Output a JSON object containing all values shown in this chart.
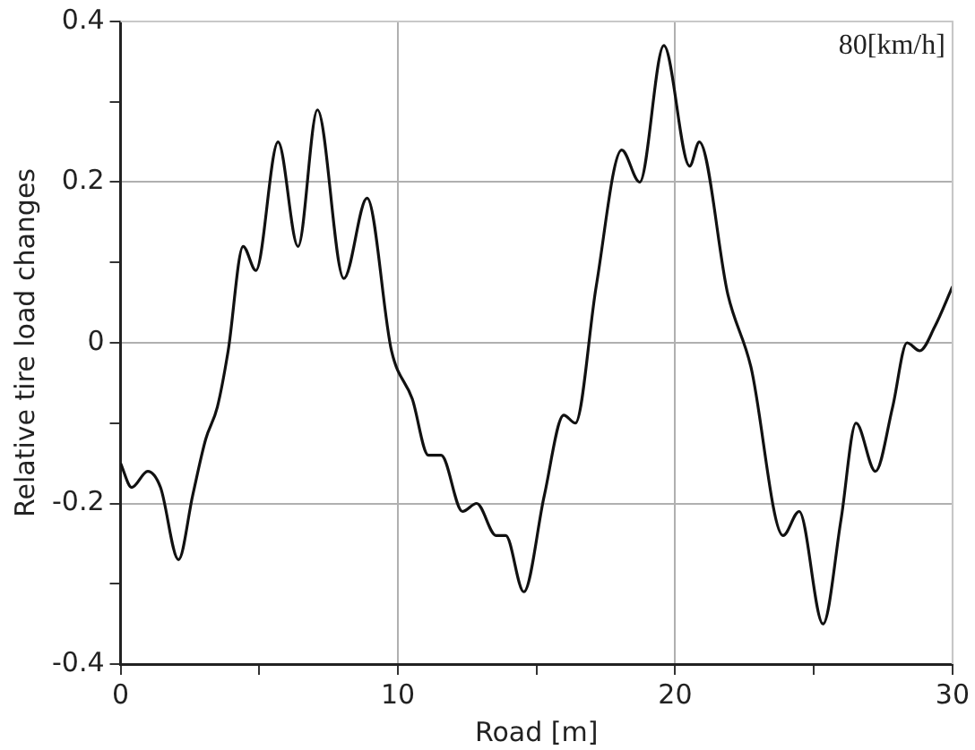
{
  "chart_data": {
    "type": "line",
    "xlabel": "Road [m]",
    "ylabel": "Relative tire load changes",
    "annotations": [
      "80[km/h]"
    ],
    "xlim": [
      0,
      30
    ],
    "xticks": [
      0,
      {
        "value": 5,
        "label": null
      },
      10,
      {
        "value": 15,
        "label": null
      },
      20,
      {
        "value": 25,
        "label": null
      },
      30
    ],
    "ylim": [
      -0.4,
      0.4
    ],
    "yticks": [
      -0.4,
      {
        "value": -0.3,
        "label": null
      },
      -0.2,
      {
        "value": -0.1,
        "label": null
      },
      0,
      {
        "value": 0.1,
        "label": null
      },
      0.2,
      {
        "value": 0.3,
        "label": null
      },
      0.4
    ],
    "grid": true,
    "marker": "none",
    "line_style": "solid",
    "series": [
      {
        "color": "#111111",
        "x": [
          0,
          0.4,
          0.98,
          1.44,
          2.09,
          2.6,
          3.07,
          3.49,
          3.88,
          4.42,
          4.88,
          5.68,
          6.4,
          7.1,
          8.05,
          8.89,
          9.77,
          10.52,
          11.1,
          11.56,
          12.33,
          12.84,
          13.54,
          13.89,
          14.54,
          15.28,
          15.98,
          16.4,
          17.15,
          18.07,
          18.72,
          19.59,
          20.52,
          20.87,
          21.9,
          22.73,
          23.89,
          24.47,
          25.33,
          25.98,
          26.52,
          27.22,
          27.84,
          28.36,
          28.82,
          29.36,
          30
        ],
        "values": [
          -0.15,
          -0.18,
          -0.16,
          -0.18,
          -0.27,
          -0.19,
          -0.12,
          -0.08,
          -0.01,
          0.12,
          0.09,
          0.25,
          0.12,
          0.29,
          0.08,
          0.18,
          -0.01,
          -0.07,
          -0.14,
          -0.14,
          -0.21,
          -0.2,
          -0.24,
          -0.24,
          -0.31,
          -0.19,
          -0.09,
          -0.1,
          0.07,
          0.24,
          0.2,
          0.37,
          0.22,
          0.25,
          0.06,
          -0.03,
          -0.24,
          -0.21,
          -0.35,
          -0.22,
          -0.1,
          -0.16,
          -0.08,
          0,
          -0.01,
          0.02,
          0.07
        ]
      }
    ]
  }
}
